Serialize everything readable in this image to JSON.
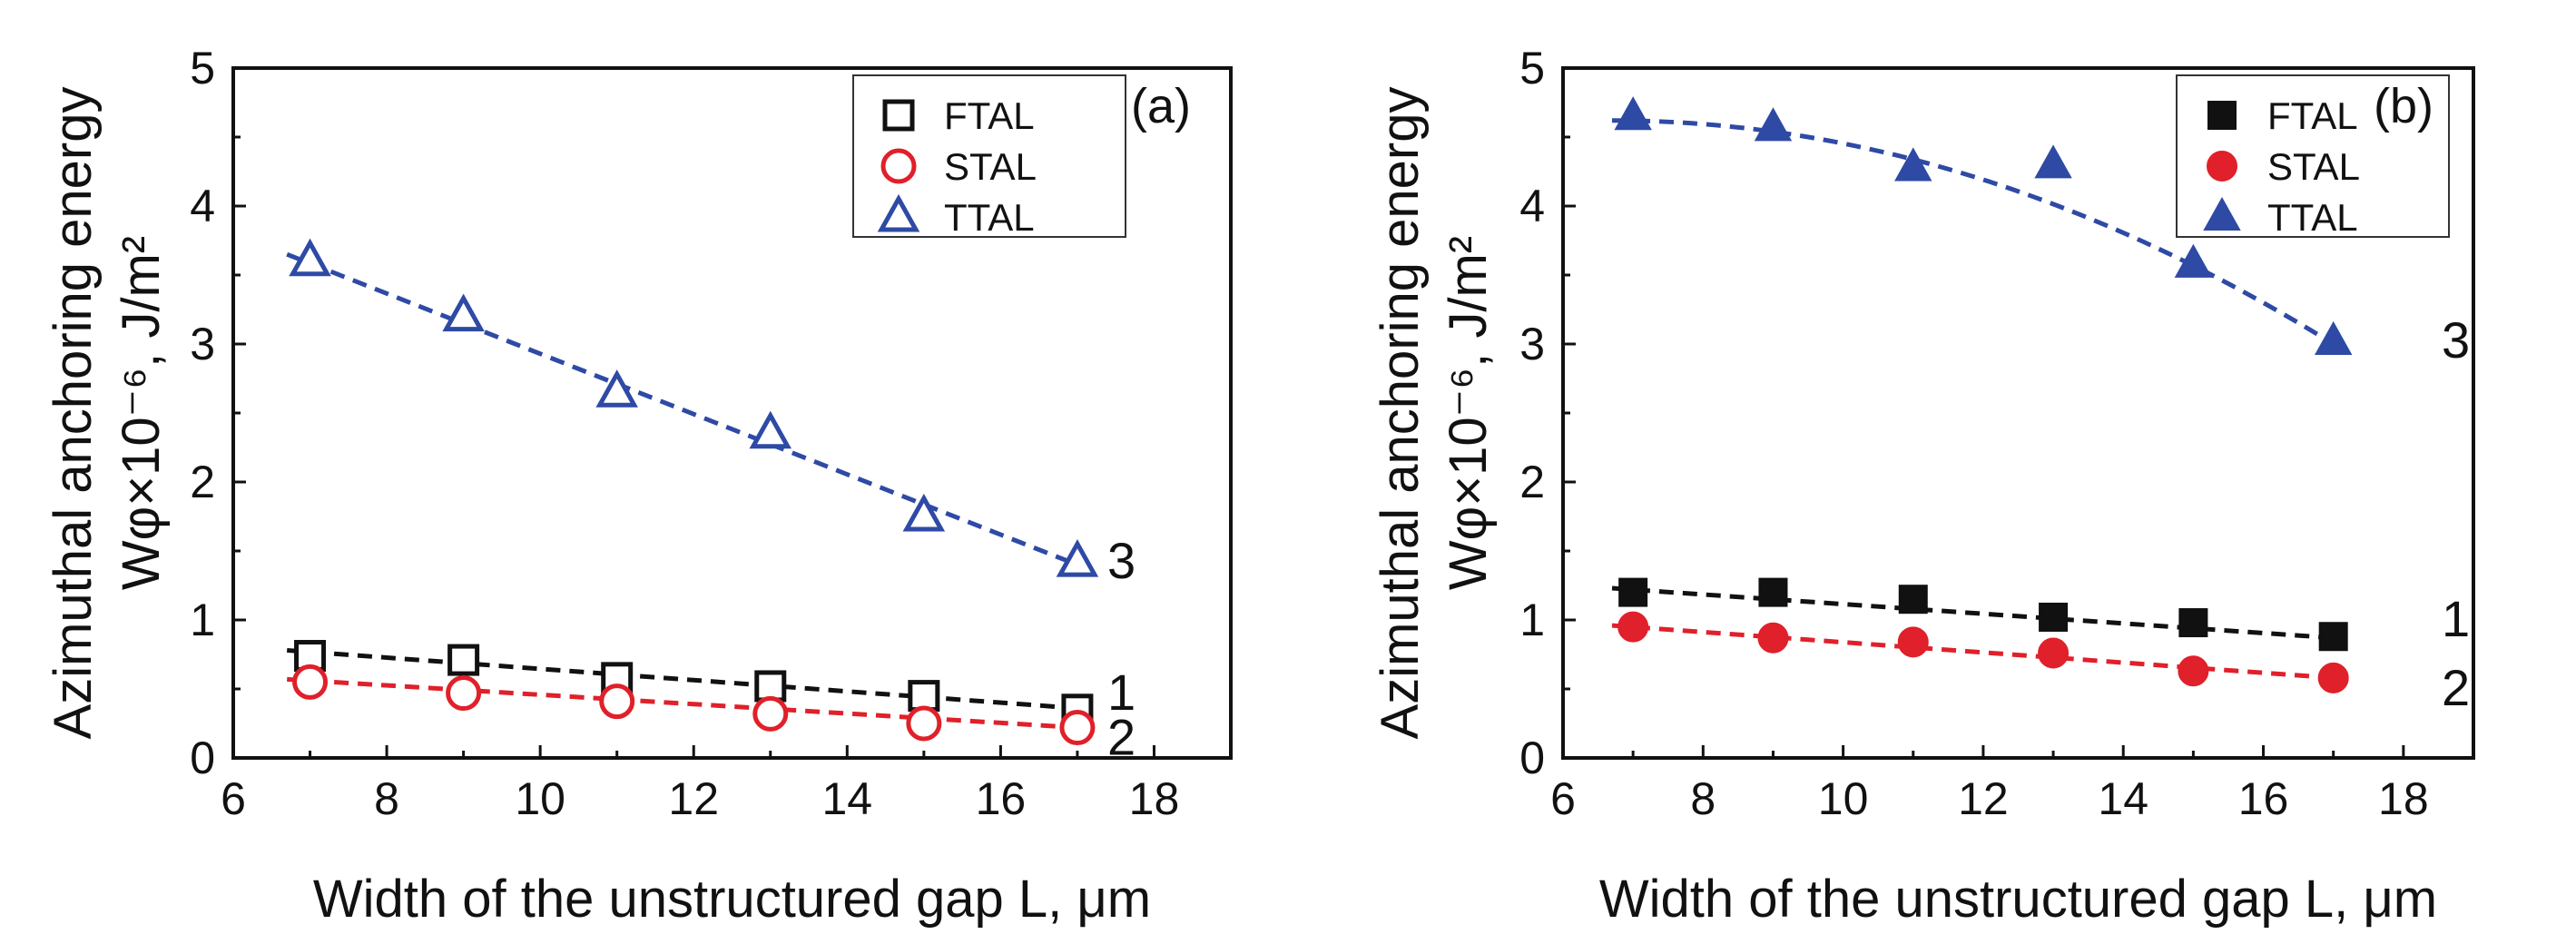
{
  "chart_data": [
    {
      "type": "scatter",
      "panel_label": "(a)",
      "marker_style": "open",
      "xlabel": "Width of the unstructured gap L, μm",
      "ylabel_line1": "Azimuthal anchoring energy",
      "ylabel_line2": "Wφ×10⁻⁶, J/m²",
      "xlim": [
        6,
        19
      ],
      "ylim": [
        0,
        5
      ],
      "xticks": [
        6,
        8,
        10,
        12,
        14,
        16,
        18
      ],
      "yticks": [
        0,
        1,
        2,
        3,
        4,
        5
      ],
      "legend_position": "top-right",
      "series": [
        {
          "name": "FTAL",
          "curve_label": "1",
          "color": "#111111",
          "marker": "square",
          "x": [
            7,
            9,
            11,
            13,
            15,
            17
          ],
          "y": [
            0.74,
            0.71,
            0.58,
            0.52,
            0.45,
            0.35
          ],
          "fit": [
            0.78,
            0.36
          ]
        },
        {
          "name": "STAL",
          "curve_label": "2",
          "color": "#e0202a",
          "marker": "circle",
          "x": [
            7,
            9,
            11,
            13,
            15,
            17
          ],
          "y": [
            0.55,
            0.47,
            0.41,
            0.32,
            0.25,
            0.22
          ],
          "fit": [
            0.57,
            0.22
          ]
        },
        {
          "name": "TTAL",
          "curve_label": "3",
          "color": "#2e4aa5",
          "marker": "triangle",
          "x": [
            7,
            9,
            11,
            13,
            15,
            17
          ],
          "y": [
            3.6,
            3.2,
            2.65,
            2.35,
            1.75,
            1.42
          ],
          "fit": [
            3.65,
            1.4
          ]
        }
      ]
    },
    {
      "type": "scatter",
      "panel_label": "(b)",
      "marker_style": "filled",
      "xlabel": "Width of the unstructured gap L, μm",
      "ylabel_line1": "Azimuthal anchoring energy",
      "ylabel_line2": "Wφ×10⁻⁶, J/m²",
      "xlim": [
        6,
        19
      ],
      "ylim": [
        0,
        5
      ],
      "xticks": [
        6,
        8,
        10,
        12,
        14,
        16,
        18
      ],
      "yticks": [
        0,
        1,
        2,
        3,
        4,
        5
      ],
      "legend_position": "top-right",
      "series": [
        {
          "name": "FTAL",
          "curve_label": "1",
          "color": "#111111",
          "marker": "square",
          "x": [
            7,
            9,
            11,
            13,
            15,
            17
          ],
          "y": [
            1.2,
            1.2,
            1.15,
            1.02,
            0.98,
            0.88
          ],
          "fit": [
            1.23,
            0.87
          ]
        },
        {
          "name": "STAL",
          "curve_label": "2",
          "color": "#e0202a",
          "marker": "circle",
          "x": [
            7,
            9,
            11,
            13,
            15,
            17
          ],
          "y": [
            0.95,
            0.87,
            0.84,
            0.76,
            0.63,
            0.58
          ],
          "fit": [
            0.96,
            0.58
          ]
        },
        {
          "name": "TTAL",
          "curve_label": "3",
          "color": "#2e4aa5",
          "marker": "triangle",
          "x": [
            7,
            9,
            11,
            13,
            15,
            17
          ],
          "y": [
            4.65,
            4.57,
            4.28,
            4.3,
            3.58,
            3.02
          ],
          "fit": [
            4.62,
            4.62,
            3.0
          ]
        }
      ]
    }
  ]
}
